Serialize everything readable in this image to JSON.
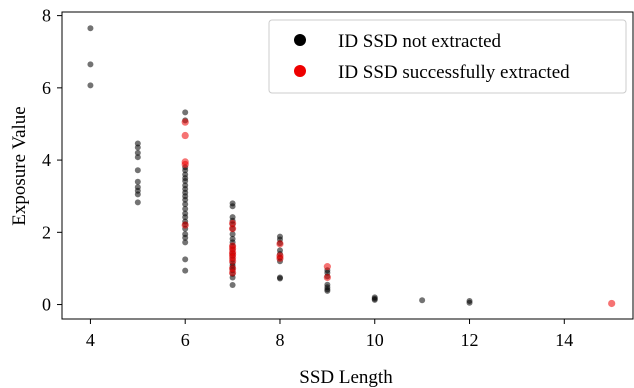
{
  "chart_data": {
    "type": "scatter",
    "title": "",
    "xlabel": "SSD Length",
    "ylabel": "Exposure Value",
    "xlim": [
      3.4,
      15.45
    ],
    "ylim": [
      -0.4,
      8.1
    ],
    "xticks": [
      4,
      6,
      8,
      10,
      12,
      14
    ],
    "yticks": [
      0,
      2,
      4,
      6,
      8
    ],
    "grid": false,
    "legend_position": "top-right",
    "series": [
      {
        "name": "ID SSD not extracted",
        "color": "#000000",
        "opacity": 0.55,
        "points": [
          [
            4,
            7.65
          ],
          [
            4,
            6.65
          ],
          [
            4,
            6.07
          ],
          [
            5,
            4.46
          ],
          [
            5,
            4.35
          ],
          [
            5,
            4.2
          ],
          [
            5,
            4.08
          ],
          [
            5,
            3.72
          ],
          [
            5,
            3.4
          ],
          [
            5,
            3.25
          ],
          [
            5,
            3.15
          ],
          [
            5,
            3.05
          ],
          [
            5,
            2.83
          ],
          [
            6,
            5.32
          ],
          [
            6,
            5.1
          ],
          [
            6,
            3.8
          ],
          [
            6,
            3.72
          ],
          [
            6,
            3.6
          ],
          [
            6,
            3.5
          ],
          [
            6,
            3.42
          ],
          [
            6,
            3.3
          ],
          [
            6,
            3.2
          ],
          [
            6,
            3.1
          ],
          [
            6,
            3.0
          ],
          [
            6,
            2.9
          ],
          [
            6,
            2.78
          ],
          [
            6,
            2.65
          ],
          [
            6,
            2.52
          ],
          [
            6,
            2.42
          ],
          [
            6,
            2.3
          ],
          [
            6,
            2.22
          ],
          [
            6,
            2.1
          ],
          [
            6,
            1.95
          ],
          [
            6,
            1.85
          ],
          [
            6,
            1.72
          ],
          [
            6,
            1.25
          ],
          [
            6,
            0.94
          ],
          [
            7,
            2.8
          ],
          [
            7,
            2.72
          ],
          [
            7,
            2.42
          ],
          [
            7,
            2.32
          ],
          [
            7,
            2.22
          ],
          [
            7,
            2.1
          ],
          [
            7,
            1.95
          ],
          [
            7,
            1.82
          ],
          [
            7,
            1.72
          ],
          [
            7,
            1.62
          ],
          [
            7,
            1.52
          ],
          [
            7,
            1.42
          ],
          [
            7,
            1.35
          ],
          [
            7,
            1.25
          ],
          [
            7,
            1.15
          ],
          [
            7,
            1.08
          ],
          [
            7,
            1.02
          ],
          [
            7,
            0.95
          ],
          [
            7,
            0.85
          ],
          [
            7,
            0.75
          ],
          [
            7,
            0.54
          ],
          [
            8,
            1.88
          ],
          [
            8,
            1.8
          ],
          [
            8,
            1.7
          ],
          [
            8,
            1.5
          ],
          [
            8,
            1.4
          ],
          [
            8,
            1.3
          ],
          [
            8,
            1.2
          ],
          [
            8,
            0.75
          ],
          [
            8,
            0.72
          ],
          [
            9,
            0.95
          ],
          [
            9,
            0.88
          ],
          [
            9,
            0.78
          ],
          [
            9,
            0.55
          ],
          [
            9,
            0.48
          ],
          [
            9,
            0.42
          ],
          [
            9,
            0.38
          ],
          [
            10,
            0.2
          ],
          [
            10,
            0.16
          ],
          [
            10,
            0.13
          ],
          [
            11,
            0.12
          ],
          [
            12,
            0.1
          ],
          [
            12,
            0.05
          ]
        ]
      },
      {
        "name": "ID SSD successfully extracted",
        "color": "#ee0000",
        "opacity": 0.55,
        "points": [
          [
            6,
            5.05
          ],
          [
            6,
            4.68
          ],
          [
            6,
            3.95
          ],
          [
            6,
            3.88
          ],
          [
            6,
            2.2
          ],
          [
            7,
            2.25
          ],
          [
            7,
            2.1
          ],
          [
            7,
            1.62
          ],
          [
            7,
            1.55
          ],
          [
            7,
            1.45
          ],
          [
            7,
            1.38
          ],
          [
            7,
            1.3
          ],
          [
            7,
            1.2
          ],
          [
            7,
            1.0
          ],
          [
            7,
            0.88
          ],
          [
            8,
            1.68
          ],
          [
            8,
            1.35
          ],
          [
            8,
            1.28
          ],
          [
            9,
            1.05
          ],
          [
            9,
            0.75
          ],
          [
            15,
            0.03
          ]
        ]
      }
    ]
  }
}
